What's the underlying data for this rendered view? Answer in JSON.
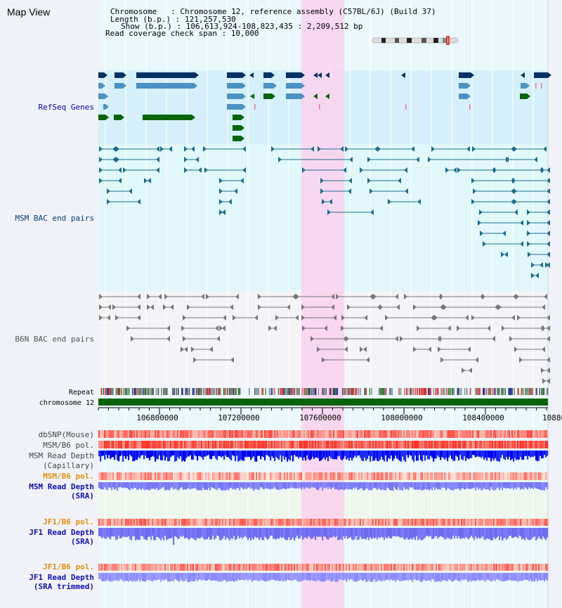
{
  "title": "Map View",
  "header": {
    "chromosome_line": "Chromosome   : Chromosome 12, reference assembly (C57BL/6J) (Build 37)",
    "length_line": "Length (b.p.) : 121,257,530",
    "show_line": "Show (b.p.) : 106,613,924-108,823,435 : 2,209,512 bp",
    "coverage_line": "Read coverage check span : 10,000"
  },
  "tracks": {
    "refseq": "RefSeq Genes",
    "msm_bac": "MSM BAC end pairs",
    "b6n_bac": "B6N BAC end pairs",
    "repeat": "Repeat",
    "chromosome": "chromosome 12"
  },
  "axis": {
    "ticks": [
      "106800000",
      "107200000",
      "107600000",
      "108000000",
      "108400000",
      "10880"
    ]
  },
  "lower_tracks": {
    "dbsnp": "dbSNP(Mouse)",
    "msm_pol1": "MSM/B6 pol.",
    "msm_depth_cap_1": "MSM Read Depth",
    "msm_depth_cap_2": "(Capillary)",
    "msm_pol2": "MSM/B6 pol.",
    "msm_depth_sra_1": "MSM Read Depth",
    "msm_depth_sra_2": "(SRA)",
    "jf1_pol1": "JF1/B6 pol.",
    "jf1_depth_1": "JF1 Read Depth",
    "jf1_depth_2": "(SRA)",
    "jf1_pol2": "JF1/B6 pol.",
    "jf1_trim_1": "JF1 Read Depth",
    "jf1_trim_2": "(SRA trimmed)"
  },
  "colors": {
    "refseq_label": "#0000aa",
    "msm_bac_label": "#003f6f",
    "b6n_bac_label": "#555555",
    "orange_label": "#e0900a",
    "blue_label": "#1010b0",
    "highlight": "#f9d4ee",
    "gene_dark": "#063263",
    "gene_mid": "#4a92c2",
    "gene_green": "#086408"
  }
}
